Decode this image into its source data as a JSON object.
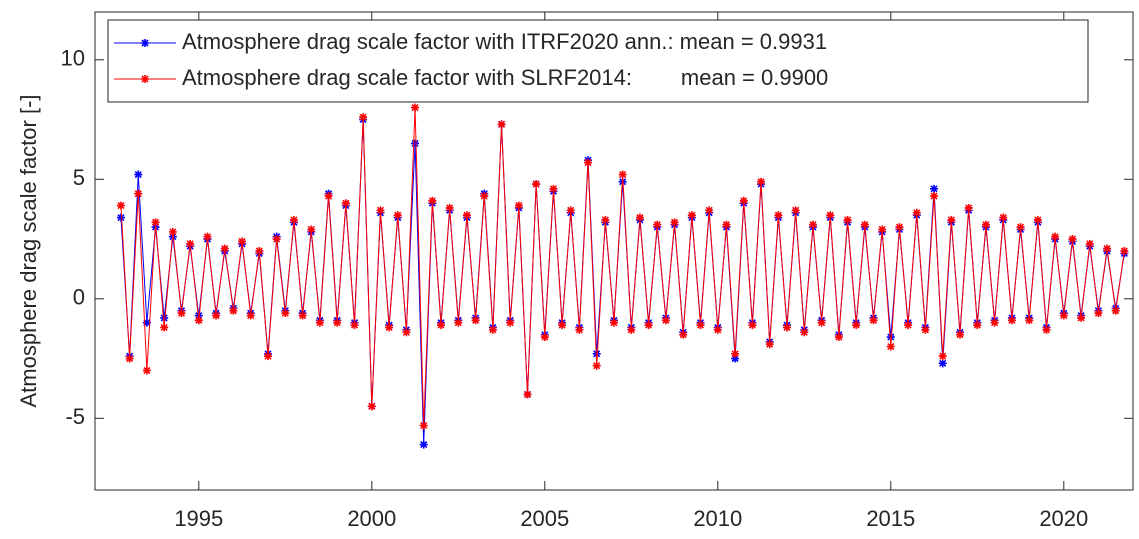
{
  "chart_data": {
    "type": "line",
    "y_label": "Atmosphere drag scale factor [-]",
    "xlim": [
      1992,
      2022
    ],
    "xticks": [
      1995,
      2000,
      2005,
      2010,
      2015,
      2020
    ],
    "ylim": [
      -8,
      12
    ],
    "yticks": [
      -5,
      0,
      5,
      10
    ],
    "legend": "top-left",
    "x": [
      1992.75,
      1993,
      1993.25,
      1993.5,
      1993.75,
      1994,
      1994.25,
      1994.5,
      1994.75,
      1995,
      1995.25,
      1995.5,
      1995.75,
      1996,
      1996.25,
      1996.5,
      1996.75,
      1997,
      1997.25,
      1997.5,
      1997.75,
      1998,
      1998.25,
      1998.5,
      1998.75,
      1999,
      1999.25,
      1999.5,
      1999.75,
      2000,
      2000.25,
      2000.5,
      2000.75,
      2001,
      2001.25,
      2001.5,
      2001.75,
      2002,
      2002.25,
      2002.5,
      2002.75,
      2003,
      2003.25,
      2003.5,
      2003.75,
      2004,
      2004.25,
      2004.5,
      2004.75,
      2005,
      2005.25,
      2005.5,
      2005.75,
      2006,
      2006.25,
      2006.5,
      2006.75,
      2007,
      2007.25,
      2007.5,
      2007.75,
      2008,
      2008.25,
      2008.5,
      2008.75,
      2009,
      2009.25,
      2009.5,
      2009.75,
      2010,
      2010.25,
      2010.5,
      2010.75,
      2011,
      2011.25,
      2011.5,
      2011.75,
      2012,
      2012.25,
      2012.5,
      2012.75,
      2013,
      2013.25,
      2013.5,
      2013.75,
      2014,
      2014.25,
      2014.5,
      2014.75,
      2015,
      2015.25,
      2015.5,
      2015.75,
      2016,
      2016.25,
      2016.5,
      2016.75,
      2017,
      2017.25,
      2017.5,
      2017.75,
      2018,
      2018.25,
      2018.5,
      2018.75,
      2019,
      2019.25,
      2019.5,
      2019.75,
      2020,
      2020.25,
      2020.5,
      2020.75,
      2021,
      2021.25,
      2021.5,
      2021.75
    ],
    "series": [
      {
        "name": "Atmosphere drag scale factor with ITRF2020 ann.: mean = 0.9931",
        "color": "#0000ff",
        "values": [
          3.4,
          -2.4,
          5.2,
          -1.0,
          3.0,
          -0.8,
          2.6,
          -0.5,
          2.2,
          -0.7,
          2.5,
          -0.6,
          2.0,
          -0.4,
          2.3,
          -0.6,
          1.9,
          -2.3,
          2.6,
          -0.5,
          3.2,
          -0.6,
          2.8,
          -0.9,
          4.4,
          -0.9,
          3.9,
          -1.0,
          7.5,
          -4.5,
          3.6,
          -1.1,
          3.4,
          -1.3,
          6.5,
          -6.1,
          4.0,
          -1.0,
          3.7,
          -0.9,
          3.4,
          -0.8,
          4.4,
          -1.2,
          7.3,
          -0.9,
          3.8,
          -4.0,
          4.8,
          -1.5,
          4.5,
          -1.0,
          3.6,
          -1.2,
          5.8,
          -2.3,
          3.2,
          -0.9,
          4.9,
          -1.2,
          3.3,
          -1.0,
          3.0,
          -0.8,
          3.1,
          -1.4,
          3.4,
          -1.0,
          3.6,
          -1.2,
          3.0,
          -2.5,
          4.0,
          -1.0,
          4.8,
          -1.8,
          3.4,
          -1.1,
          3.6,
          -1.3,
          3.0,
          -0.9,
          3.4,
          -1.5,
          3.2,
          -1.0,
          3.0,
          -0.8,
          2.8,
          -1.6,
          2.9,
          -1.0,
          3.5,
          -1.2,
          4.6,
          -2.7,
          3.2,
          -1.4,
          3.7,
          -1.0,
          3.0,
          -0.9,
          3.3,
          -0.8,
          2.9,
          -0.8,
          3.2,
          -1.2,
          2.5,
          -0.6,
          2.4,
          -0.7,
          2.2,
          -0.5,
          2.0,
          -0.4,
          1.9
        ]
      },
      {
        "name": "Atmosphere drag scale factor with SLRF2014:        mean = 0.9900",
        "color": "#ff0000",
        "values": [
          3.9,
          -2.5,
          4.4,
          -3.0,
          3.2,
          -1.2,
          2.8,
          -0.6,
          2.3,
          -0.9,
          2.6,
          -0.7,
          2.1,
          -0.5,
          2.4,
          -0.7,
          2.0,
          -2.4,
          2.5,
          -0.6,
          3.3,
          -0.7,
          2.9,
          -1.0,
          4.3,
          -1.0,
          4.0,
          -1.1,
          7.6,
          -4.5,
          3.7,
          -1.2,
          3.5,
          -1.4,
          8.0,
          -5.3,
          4.1,
          -1.1,
          3.8,
          -1.0,
          3.5,
          -0.9,
          4.3,
          -1.3,
          7.3,
          -1.0,
          3.9,
          -4.0,
          4.8,
          -1.6,
          4.6,
          -1.1,
          3.7,
          -1.3,
          5.7,
          -2.8,
          3.3,
          -1.0,
          5.2,
          -1.3,
          3.4,
          -1.1,
          3.1,
          -0.9,
          3.2,
          -1.5,
          3.5,
          -1.1,
          3.7,
          -1.3,
          3.1,
          -2.3,
          4.1,
          -1.1,
          4.9,
          -1.9,
          3.5,
          -1.2,
          3.7,
          -1.4,
          3.1,
          -1.0,
          3.5,
          -1.6,
          3.3,
          -1.1,
          3.1,
          -0.9,
          2.9,
          -2.0,
          3.0,
          -1.1,
          3.6,
          -1.3,
          4.3,
          -2.4,
          3.3,
          -1.5,
          3.8,
          -1.1,
          3.1,
          -1.0,
          3.4,
          -0.9,
          3.0,
          -0.9,
          3.3,
          -1.3,
          2.6,
          -0.7,
          2.5,
          -0.8,
          2.3,
          -0.6,
          2.1,
          -0.5,
          2.0
        ]
      }
    ]
  }
}
